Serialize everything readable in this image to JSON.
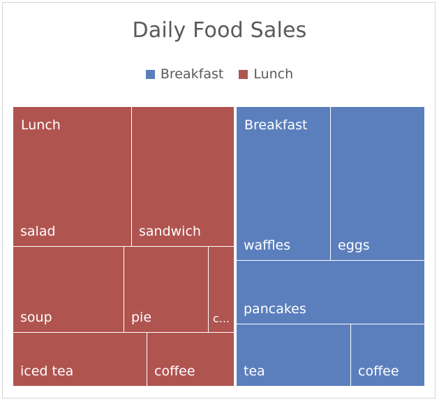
{
  "chart_data": {
    "type": "treemap",
    "title": "Daily Food Sales",
    "legend": {
      "position": "top",
      "entries": [
        {
          "name": "Breakfast",
          "color": "#5b7fbd"
        },
        {
          "name": "Lunch",
          "color": "#b05450"
        }
      ]
    },
    "groups": [
      {
        "name": "Lunch",
        "color": "#b05450",
        "items": [
          {
            "label": "salad"
          },
          {
            "label": "sandwich"
          },
          {
            "label": "soup"
          },
          {
            "label": "pie"
          },
          {
            "label": "c..."
          },
          {
            "label": "iced tea"
          },
          {
            "label": "coffee"
          }
        ]
      },
      {
        "name": "Breakfast",
        "color": "#5b7fbd",
        "items": [
          {
            "label": "waffles"
          },
          {
            "label": "eggs"
          },
          {
            "label": "pancakes"
          },
          {
            "label": "tea"
          },
          {
            "label": "coffee"
          }
        ]
      }
    ]
  }
}
